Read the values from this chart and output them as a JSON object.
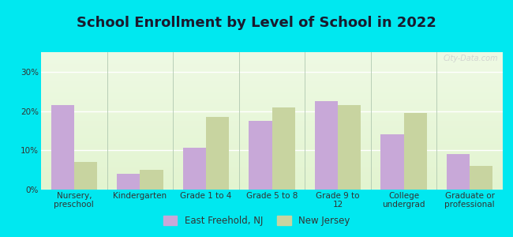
{
  "title": "School Enrollment by Level of School in 2022",
  "categories": [
    "Nursery,\npreschool",
    "Kindergarten",
    "Grade 1 to 4",
    "Grade 5 to 8",
    "Grade 9 to\n12",
    "College\nundergrad",
    "Graduate or\nprofessional"
  ],
  "east_freehold": [
    21.5,
    4.0,
    10.7,
    17.5,
    22.5,
    14.0,
    9.0
  ],
  "new_jersey": [
    7.0,
    5.0,
    18.5,
    21.0,
    21.5,
    19.5,
    6.0
  ],
  "bar_color_ef": "#c8a8d8",
  "bar_color_nj": "#c8d4a0",
  "background_outer": "#00e8f0",
  "background_plot_top": "#f5fff0",
  "background_plot_bottom": "#e8f8e0",
  "ylim": [
    0,
    35
  ],
  "yticks": [
    0,
    10,
    20,
    30
  ],
  "ytick_labels": [
    "0%",
    "10%",
    "20%",
    "30%"
  ],
  "legend_label_ef": "East Freehold, NJ",
  "legend_label_nj": "New Jersey",
  "title_fontsize": 13,
  "tick_fontsize": 7.5,
  "legend_fontsize": 8.5,
  "watermark": "City-Data.com"
}
